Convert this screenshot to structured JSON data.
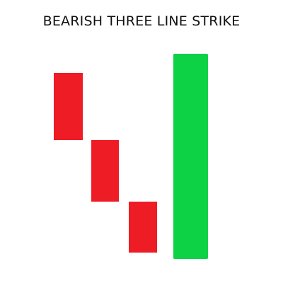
{
  "title": "BEARISH THREE LINE STRIKE",
  "colors": {
    "bearish": "#ee1c25",
    "bullish": "#0dd246",
    "background": "#ffffff",
    "text": "#111111"
  },
  "candles": [
    {
      "direction": "bearish",
      "color_key": "bearish"
    },
    {
      "direction": "bearish",
      "color_key": "bearish"
    },
    {
      "direction": "bearish",
      "color_key": "bearish"
    },
    {
      "direction": "bullish",
      "color_key": "bullish"
    }
  ]
}
